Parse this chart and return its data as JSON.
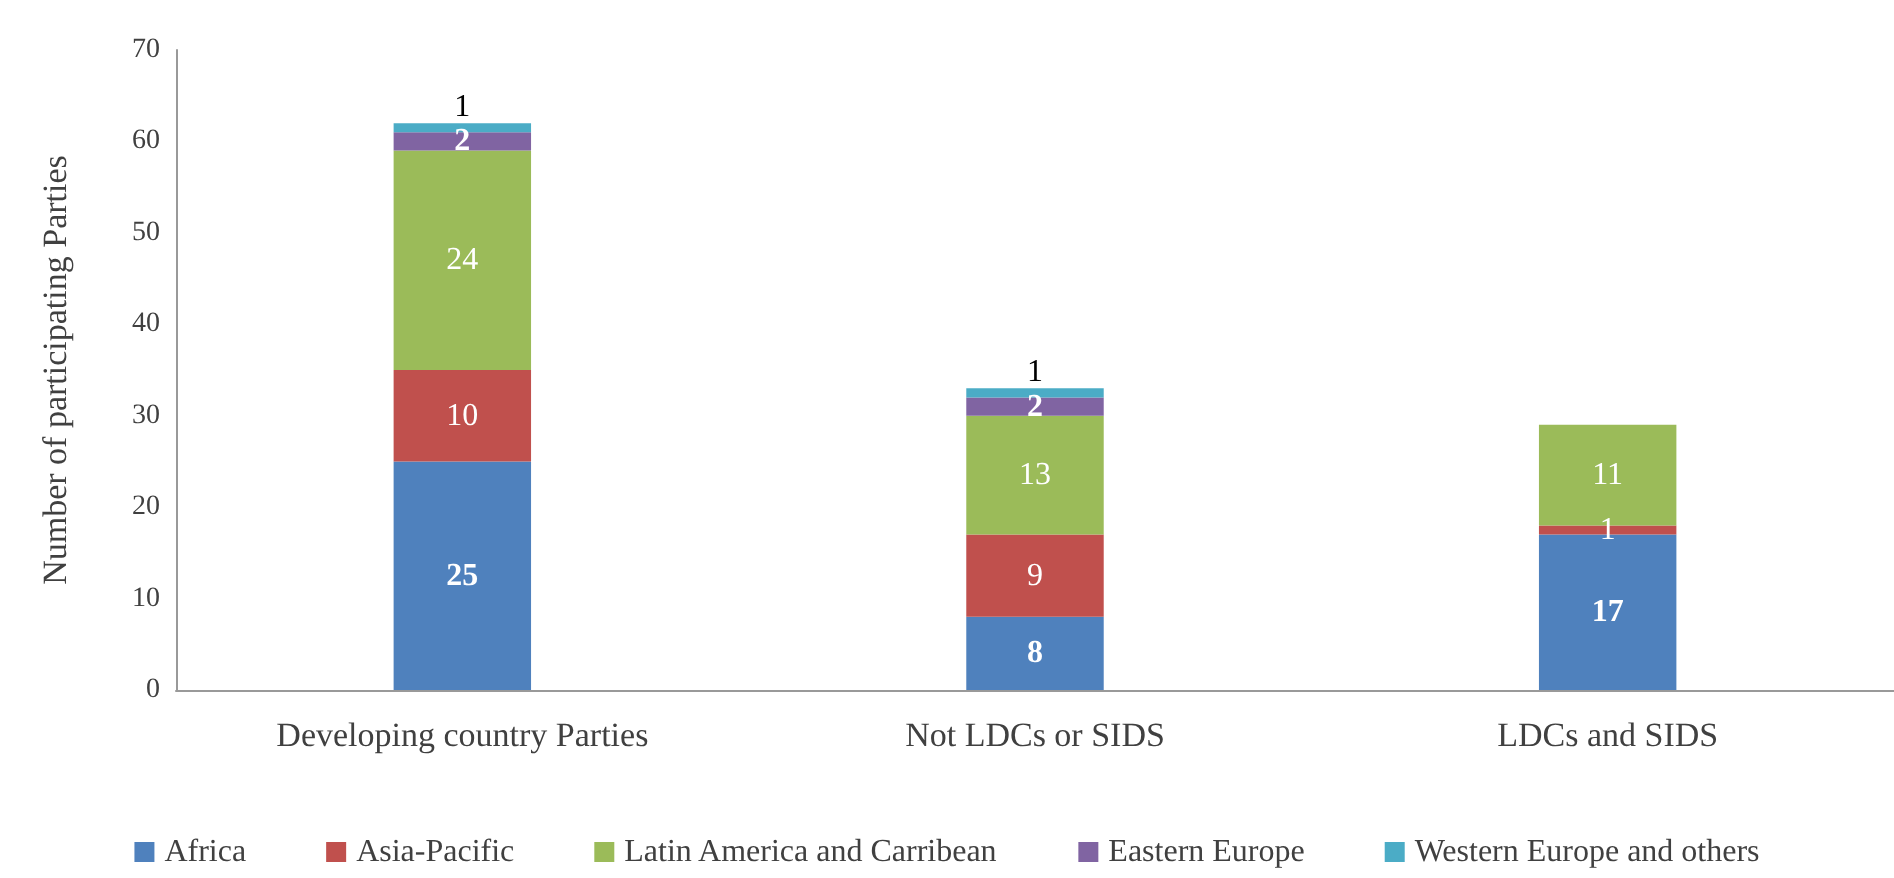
{
  "chart_data": {
    "type": "bar",
    "stacked": true,
    "ylabel": "Number of participating Parties",
    "categories": [
      "Developing country Parties",
      "Not LDCs or SIDS",
      "LDCs and SIDS"
    ],
    "series": [
      {
        "name": "Africa",
        "color": "#4f81bd",
        "values": [
          25,
          8,
          17
        ]
      },
      {
        "name": "Asia-Pacific",
        "color": "#c0504d",
        "values": [
          10,
          9,
          1
        ]
      },
      {
        "name": "Latin America and Carribean",
        "color": "#9bbb59",
        "values": [
          24,
          13,
          11
        ]
      },
      {
        "name": "Eastern Europe",
        "color": "#8064a2",
        "values": [
          2,
          2,
          null
        ]
      },
      {
        "name": "Western Europe and others",
        "color": "#4bacc6",
        "values": [
          1,
          1,
          null
        ]
      }
    ],
    "ylim": [
      0,
      70
    ],
    "yticks": [
      0,
      10,
      20,
      30,
      40,
      50,
      60,
      70
    ],
    "grid": false,
    "legend": "bottom",
    "data_labels": true
  }
}
